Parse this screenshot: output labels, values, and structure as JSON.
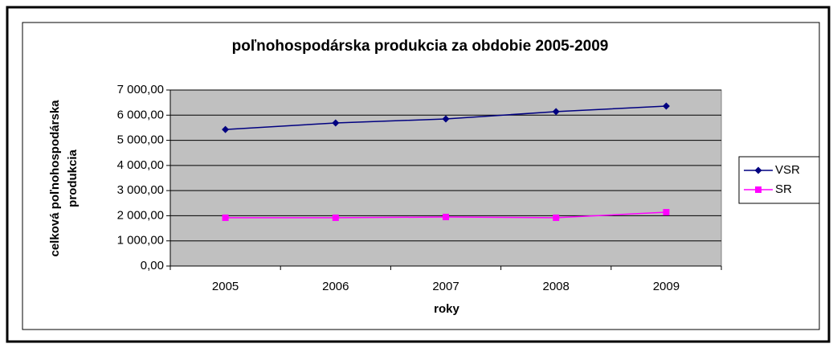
{
  "chart_data": {
    "type": "line",
    "title": "poľnohospodárska produkcia za obdobie 2005-2009",
    "x_label": "roky",
    "y_label_lines": [
      "celková poľnohospodárska",
      "produkcia"
    ],
    "categories": [
      "2005",
      "2006",
      "2007",
      "2008",
      "2009"
    ],
    "series": [
      {
        "name": "VSR",
        "color": "#000080",
        "marker": "diamond",
        "values": [
          5430,
          5690,
          5850,
          6140,
          6360
        ]
      },
      {
        "name": "SR",
        "color": "#ff00ff",
        "marker": "square",
        "values": [
          1920,
          1920,
          1950,
          1920,
          2140
        ]
      }
    ],
    "ylim": [
      0,
      7000
    ],
    "yticks": [
      {
        "value": 0,
        "label": "0,00"
      },
      {
        "value": 1000,
        "label": "1 000,00"
      },
      {
        "value": 2000,
        "label": "2 000,00"
      },
      {
        "value": 3000,
        "label": "3 000,00"
      },
      {
        "value": 4000,
        "label": "4 000,00"
      },
      {
        "value": 5000,
        "label": "5 000,00"
      },
      {
        "value": 6000,
        "label": "6 000,00"
      },
      {
        "value": 7000,
        "label": "7 000,00"
      }
    ],
    "grid": true,
    "plot_background": "#c0c0c0",
    "legend": "right"
  }
}
